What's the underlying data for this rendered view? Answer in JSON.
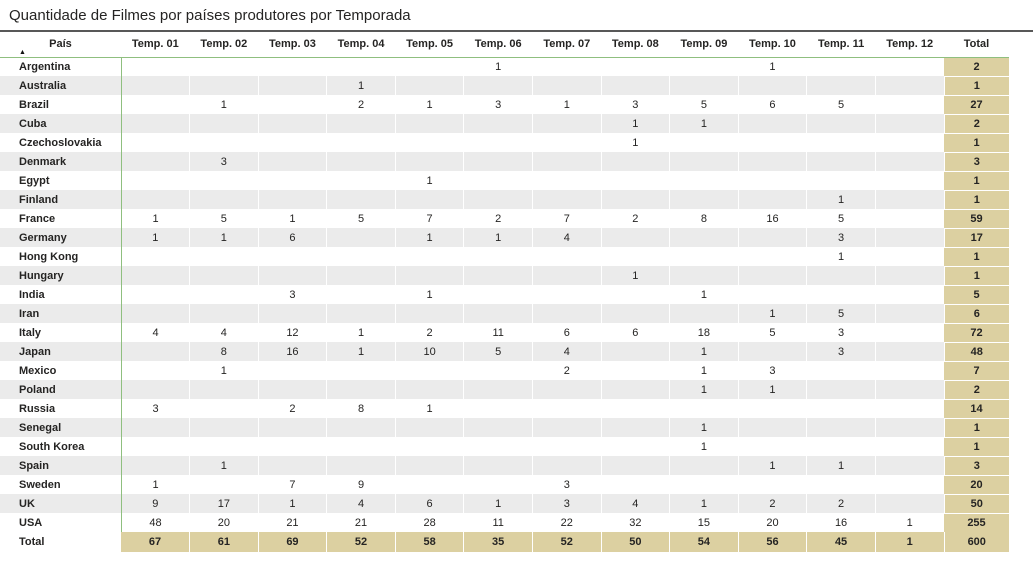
{
  "icons": {
    "sort_ascending": "▲"
  },
  "colors": {
    "total_highlight": "#dcd0a1",
    "grid_green": "#8fbf7f",
    "row_stripe": "#ebebeb",
    "text": "#252423",
    "title_rule": "#585858"
  },
  "chart_data": {
    "type": "table",
    "title": "Quantidade de Filmes por países produtores por Temporada",
    "row_header_label": "País",
    "sort_indicator": "ascending",
    "columns": [
      "Temp. 01",
      "Temp. 02",
      "Temp. 03",
      "Temp. 04",
      "Temp. 05",
      "Temp. 06",
      "Temp. 07",
      "Temp. 08",
      "Temp. 09",
      "Temp. 10",
      "Temp. 11",
      "Temp. 12"
    ],
    "total_column_label": "Total",
    "total_row_label": "Total",
    "rows": [
      {
        "country": "Argentina",
        "values": [
          "",
          "",
          "",
          "",
          "",
          1,
          "",
          "",
          "",
          1,
          "",
          ""
        ],
        "total": 2
      },
      {
        "country": "Australia",
        "values": [
          "",
          "",
          "",
          1,
          "",
          "",
          "",
          "",
          "",
          "",
          "",
          ""
        ],
        "total": 1
      },
      {
        "country": "Brazil",
        "values": [
          "",
          1,
          "",
          2,
          1,
          3,
          1,
          3,
          5,
          6,
          5,
          ""
        ],
        "total": 27
      },
      {
        "country": "Cuba",
        "values": [
          "",
          "",
          "",
          "",
          "",
          "",
          "",
          1,
          1,
          "",
          "",
          ""
        ],
        "total": 2
      },
      {
        "country": "Czechoslovakia",
        "values": [
          "",
          "",
          "",
          "",
          "",
          "",
          "",
          1,
          "",
          "",
          "",
          ""
        ],
        "total": 1
      },
      {
        "country": "Denmark",
        "values": [
          "",
          3,
          "",
          "",
          "",
          "",
          "",
          "",
          "",
          "",
          "",
          ""
        ],
        "total": 3
      },
      {
        "country": "Egypt",
        "values": [
          "",
          "",
          "",
          "",
          1,
          "",
          "",
          "",
          "",
          "",
          "",
          ""
        ],
        "total": 1
      },
      {
        "country": "Finland",
        "values": [
          "",
          "",
          "",
          "",
          "",
          "",
          "",
          "",
          "",
          "",
          1,
          ""
        ],
        "total": 1
      },
      {
        "country": "France",
        "values": [
          1,
          5,
          1,
          5,
          7,
          2,
          7,
          2,
          8,
          16,
          5,
          ""
        ],
        "total": 59
      },
      {
        "country": "Germany",
        "values": [
          1,
          1,
          6,
          "",
          1,
          1,
          4,
          "",
          "",
          "",
          3,
          ""
        ],
        "total": 17
      },
      {
        "country": "Hong Kong",
        "values": [
          "",
          "",
          "",
          "",
          "",
          "",
          "",
          "",
          "",
          "",
          1,
          ""
        ],
        "total": 1
      },
      {
        "country": "Hungary",
        "values": [
          "",
          "",
          "",
          "",
          "",
          "",
          "",
          1,
          "",
          "",
          "",
          ""
        ],
        "total": 1
      },
      {
        "country": "India",
        "values": [
          "",
          "",
          3,
          "",
          1,
          "",
          "",
          "",
          1,
          "",
          "",
          ""
        ],
        "total": 5
      },
      {
        "country": "Iran",
        "values": [
          "",
          "",
          "",
          "",
          "",
          "",
          "",
          "",
          "",
          1,
          5,
          ""
        ],
        "total": 6
      },
      {
        "country": "Italy",
        "values": [
          4,
          4,
          12,
          1,
          2,
          11,
          6,
          6,
          18,
          5,
          3,
          ""
        ],
        "total": 72
      },
      {
        "country": "Japan",
        "values": [
          "",
          8,
          16,
          1,
          10,
          5,
          4,
          "",
          1,
          "",
          3,
          ""
        ],
        "total": 48
      },
      {
        "country": "Mexico",
        "values": [
          "",
          1,
          "",
          "",
          "",
          "",
          2,
          "",
          1,
          3,
          "",
          ""
        ],
        "total": 7
      },
      {
        "country": "Poland",
        "values": [
          "",
          "",
          "",
          "",
          "",
          "",
          "",
          "",
          1,
          1,
          "",
          ""
        ],
        "total": 2
      },
      {
        "country": "Russia",
        "values": [
          3,
          "",
          2,
          8,
          1,
          "",
          "",
          "",
          "",
          "",
          "",
          ""
        ],
        "total": 14
      },
      {
        "country": "Senegal",
        "values": [
          "",
          "",
          "",
          "",
          "",
          "",
          "",
          "",
          1,
          "",
          "",
          ""
        ],
        "total": 1
      },
      {
        "country": "South Korea",
        "values": [
          "",
          "",
          "",
          "",
          "",
          "",
          "",
          "",
          1,
          "",
          "",
          ""
        ],
        "total": 1
      },
      {
        "country": "Spain",
        "values": [
          "",
          1,
          "",
          "",
          "",
          "",
          "",
          "",
          "",
          1,
          1,
          ""
        ],
        "total": 3
      },
      {
        "country": "Sweden",
        "values": [
          1,
          "",
          7,
          9,
          "",
          "",
          3,
          "",
          "",
          "",
          "",
          ""
        ],
        "total": 20
      },
      {
        "country": "UK",
        "values": [
          9,
          17,
          1,
          4,
          6,
          1,
          3,
          4,
          1,
          2,
          2,
          ""
        ],
        "total": 50
      },
      {
        "country": "USA",
        "values": [
          48,
          20,
          21,
          21,
          28,
          11,
          22,
          32,
          15,
          20,
          16,
          1
        ],
        "total": 255
      }
    ],
    "column_totals": [
      67,
      61,
      69,
      52,
      58,
      35,
      52,
      50,
      54,
      56,
      45,
      1
    ],
    "grand_total": 600
  }
}
